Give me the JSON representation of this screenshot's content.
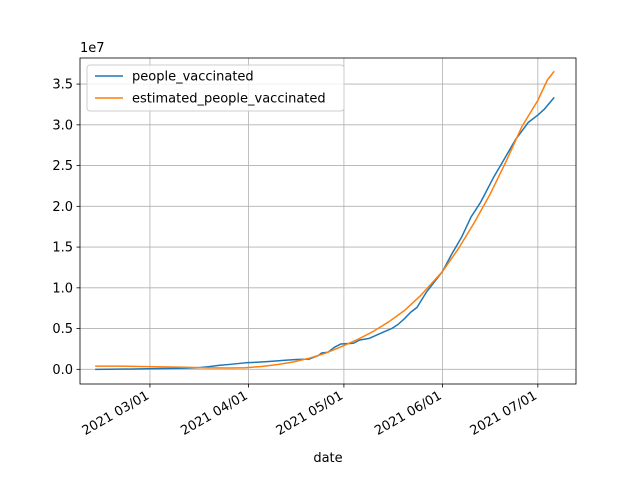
{
  "chart_data": {
    "type": "line",
    "title": "",
    "xlabel": "date",
    "ylabel": "",
    "y_offset_text": "1e7",
    "grid": true,
    "legend_position": "upper-left",
    "xlim": [
      "2021-02-07",
      "2021-07-13"
    ],
    "ylim": [
      -0.18,
      3.82
    ],
    "x_ticks": [
      {
        "date": "2021-03-01",
        "label": "2021 03/01"
      },
      {
        "date": "2021-04-01",
        "label": "2021 04/01"
      },
      {
        "date": "2021-05-01",
        "label": "2021 05/01"
      },
      {
        "date": "2021-06-01",
        "label": "2021 06/01"
      },
      {
        "date": "2021-07-01",
        "label": "2021 07/01"
      }
    ],
    "y_ticks": [
      {
        "value": 0.0,
        "label": "0.0"
      },
      {
        "value": 0.5,
        "label": "0.5"
      },
      {
        "value": 1.0,
        "label": "1.0"
      },
      {
        "value": 1.5,
        "label": "1.5"
      },
      {
        "value": 2.0,
        "label": "2.0"
      },
      {
        "value": 2.5,
        "label": "2.5"
      },
      {
        "value": 3.0,
        "label": "3.0"
      },
      {
        "value": 3.5,
        "label": "3.5"
      }
    ],
    "series": [
      {
        "name": "people_vaccinated",
        "color": "#1f77b4",
        "points": [
          [
            "2021-02-12",
            0.0
          ],
          [
            "2021-02-19",
            0.002
          ],
          [
            "2021-02-26",
            0.005
          ],
          [
            "2021-03-05",
            0.01
          ],
          [
            "2021-03-12",
            0.015
          ],
          [
            "2021-03-16",
            0.02
          ],
          [
            "2021-03-19",
            0.03
          ],
          [
            "2021-03-23",
            0.05
          ],
          [
            "2021-03-26",
            0.06
          ],
          [
            "2021-03-31",
            0.08
          ],
          [
            "2021-04-05",
            0.09
          ],
          [
            "2021-04-09",
            0.1
          ],
          [
            "2021-04-12",
            0.11
          ],
          [
            "2021-04-16",
            0.12
          ],
          [
            "2021-04-20",
            0.125
          ],
          [
            "2021-04-23",
            0.17
          ],
          [
            "2021-04-24",
            0.2
          ],
          [
            "2021-04-26",
            0.21
          ],
          [
            "2021-04-28",
            0.27
          ],
          [
            "2021-04-30",
            0.31
          ],
          [
            "2021-05-04",
            0.32
          ],
          [
            "2021-05-06",
            0.36
          ],
          [
            "2021-05-09",
            0.38
          ],
          [
            "2021-05-13",
            0.45
          ],
          [
            "2021-05-16",
            0.5
          ],
          [
            "2021-05-18",
            0.55
          ],
          [
            "2021-05-20",
            0.62
          ],
          [
            "2021-05-22",
            0.7
          ],
          [
            "2021-05-24",
            0.76
          ],
          [
            "2021-05-27",
            0.95
          ],
          [
            "2021-05-29",
            1.05
          ],
          [
            "2021-06-01",
            1.2
          ],
          [
            "2021-06-04",
            1.42
          ],
          [
            "2021-06-07",
            1.62
          ],
          [
            "2021-06-10",
            1.87
          ],
          [
            "2021-06-13",
            2.05
          ],
          [
            "2021-06-17",
            2.35
          ],
          [
            "2021-06-20",
            2.55
          ],
          [
            "2021-06-24",
            2.82
          ],
          [
            "2021-06-28",
            3.03
          ],
          [
            "2021-07-01",
            3.12
          ],
          [
            "2021-07-03",
            3.19
          ],
          [
            "2021-07-06",
            3.33
          ]
        ]
      },
      {
        "name": "estimated_people_vaccinated",
        "color": "#ff7f0e",
        "points": [
          [
            "2021-02-12",
            0.04
          ],
          [
            "2021-02-19",
            0.04
          ],
          [
            "2021-02-26",
            0.035
          ],
          [
            "2021-03-05",
            0.03
          ],
          [
            "2021-03-12",
            0.025
          ],
          [
            "2021-03-19",
            0.018
          ],
          [
            "2021-03-26",
            0.017
          ],
          [
            "2021-03-31",
            0.02
          ],
          [
            "2021-04-05",
            0.035
          ],
          [
            "2021-04-10",
            0.058
          ],
          [
            "2021-04-15",
            0.09
          ],
          [
            "2021-04-20",
            0.135
          ],
          [
            "2021-04-25",
            0.195
          ],
          [
            "2021-04-30",
            0.275
          ],
          [
            "2021-05-05",
            0.36
          ],
          [
            "2021-05-10",
            0.46
          ],
          [
            "2021-05-15",
            0.58
          ],
          [
            "2021-05-20",
            0.72
          ],
          [
            "2021-05-25",
            0.9
          ],
          [
            "2021-06-01",
            1.2
          ],
          [
            "2021-06-06",
            1.48
          ],
          [
            "2021-06-11",
            1.8
          ],
          [
            "2021-06-16",
            2.15
          ],
          [
            "2021-06-21",
            2.55
          ],
          [
            "2021-06-26",
            2.98
          ],
          [
            "2021-07-01",
            3.3
          ],
          [
            "2021-07-04",
            3.55
          ],
          [
            "2021-07-06",
            3.65
          ]
        ]
      }
    ]
  }
}
